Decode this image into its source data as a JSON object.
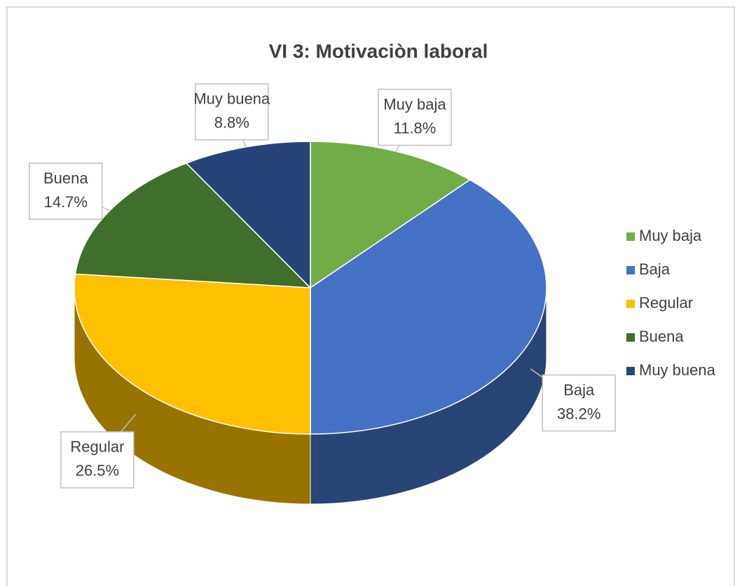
{
  "chart_data": {
    "type": "pie",
    "title": "VI 3: Motivaciòn laboral",
    "categories": [
      "Muy baja",
      "Baja",
      "Regular",
      "Buena",
      "Muy buena"
    ],
    "values": [
      11.8,
      38.2,
      26.5,
      14.7,
      8.8
    ],
    "value_labels": [
      "11.8%",
      "38.2%",
      "26.5%",
      "14.7%",
      "8.8%"
    ],
    "colors": [
      "#70ad47",
      "#4472c4",
      "#ffc000",
      "#3f6f2a",
      "#264478"
    ],
    "legend": "right"
  }
}
